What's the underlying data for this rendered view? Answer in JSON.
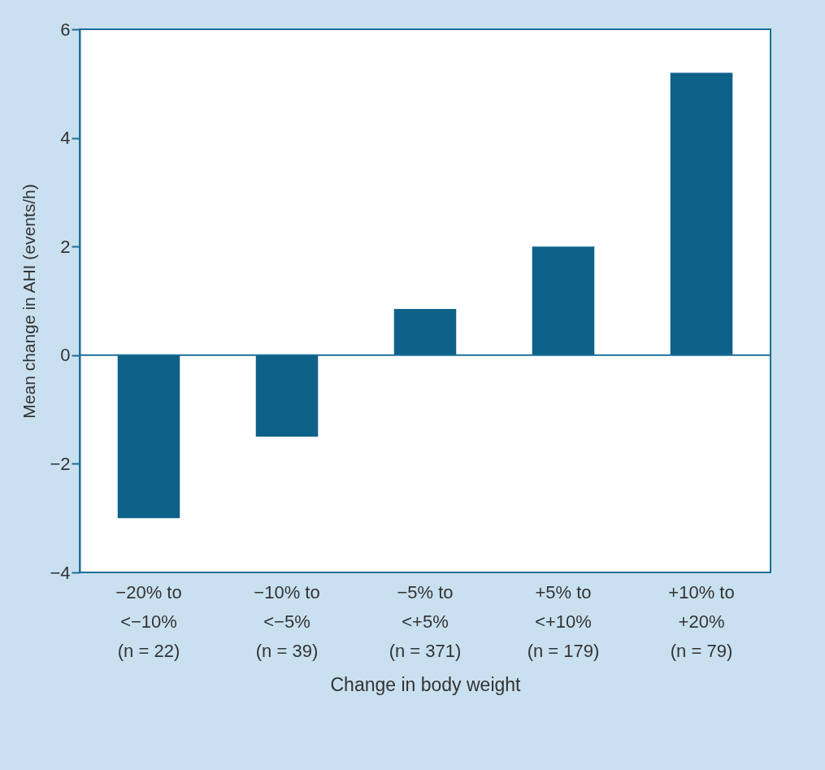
{
  "chart_data": {
    "type": "bar",
    "xlabel": "Change in body weight",
    "ylabel": "Mean change in AHI (events/h)",
    "categories": [
      "−20% to\n<−10%\n(n = 22)",
      "−10% to\n<−5%\n(n = 39)",
      "−5% to\n<+5%\n(n = 371)",
      "+5% to\n<+10%\n(n = 179)",
      "+10% to\n+20%\n(n = 79)"
    ],
    "values": [
      -3.0,
      -1.5,
      0.85,
      2.0,
      5.2
    ],
    "color": "#0e6189",
    "ylim": [
      -4,
      6
    ],
    "yticks": [
      -4,
      -2,
      0,
      2,
      4,
      6
    ],
    "grid": false,
    "ref_lines": [
      {
        "axis": "y",
        "value": 0,
        "color": "#1a6f96"
      }
    ]
  }
}
